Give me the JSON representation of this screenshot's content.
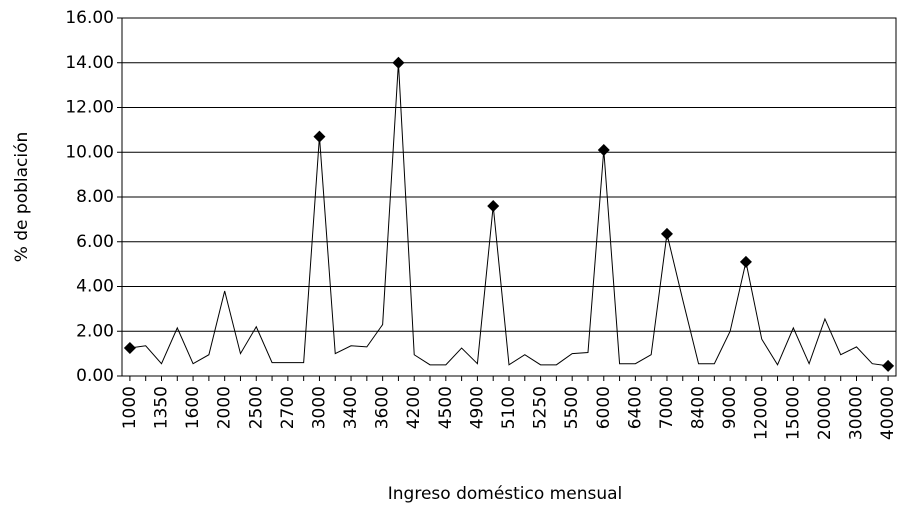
{
  "chart_data": {
    "type": "line",
    "xlabel": "Ingreso doméstico mensual",
    "ylabel": "% de población",
    "categories": [
      "1000",
      null,
      "1350",
      null,
      "1600",
      null,
      "2000",
      null,
      "2500",
      null,
      "2700",
      null,
      "3000",
      null,
      "3400",
      null,
      "3600",
      null,
      "4200",
      null,
      "4500",
      null,
      "4900",
      null,
      "5100",
      null,
      "5250",
      null,
      "5500",
      null,
      "6000",
      null,
      "6400",
      null,
      "7000",
      null,
      "8400",
      null,
      "9000",
      null,
      "12000",
      null,
      "15000",
      null,
      "20000",
      null,
      "30000",
      null,
      "40000"
    ],
    "series": [
      {
        "color": "#000000",
        "values": [
          1.25,
          1.35,
          0.55,
          2.15,
          0.55,
          0.95,
          3.8,
          1.0,
          2.2,
          0.6,
          0.6,
          0.6,
          10.7,
          1.0,
          1.35,
          1.3,
          2.3,
          14.0,
          0.95,
          0.5,
          0.5,
          1.25,
          0.55,
          7.6,
          0.5,
          0.95,
          0.5,
          0.5,
          1.0,
          1.05,
          10.1,
          0.55,
          0.55,
          0.95,
          6.35,
          3.4,
          0.55,
          0.55,
          2.0,
          5.1,
          1.65,
          0.5,
          2.15,
          0.55,
          2.55,
          0.95,
          1.3,
          0.55,
          0.45
        ],
        "markers": [
          true,
          false,
          false,
          false,
          false,
          false,
          false,
          false,
          false,
          false,
          false,
          false,
          true,
          false,
          false,
          false,
          false,
          true,
          false,
          false,
          false,
          false,
          false,
          true,
          false,
          false,
          false,
          false,
          false,
          false,
          true,
          false,
          false,
          false,
          true,
          false,
          false,
          false,
          false,
          true,
          false,
          false,
          false,
          false,
          false,
          false,
          false,
          false,
          true
        ]
      }
    ],
    "ylim": [
      0,
      16
    ],
    "yticks": [
      {
        "value": 0,
        "label": "0.00"
      },
      {
        "value": 2,
        "label": "2.00"
      },
      {
        "value": 4,
        "label": "4.00"
      },
      {
        "value": 6,
        "label": "6.00"
      },
      {
        "value": 8,
        "label": "8.00"
      },
      {
        "value": 10,
        "label": "10.00"
      },
      {
        "value": 12,
        "label": "12.00"
      },
      {
        "value": 14,
        "label": "14.00"
      },
      {
        "value": 16,
        "label": "16.00"
      }
    ],
    "grid": true
  }
}
